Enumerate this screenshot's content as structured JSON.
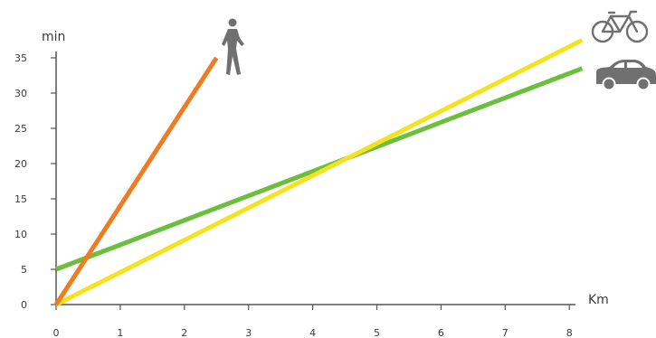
{
  "chart_data": {
    "type": "line",
    "xlabel": "Km",
    "ylabel": "min",
    "xlim": [
      0,
      8
    ],
    "ylim": [
      0,
      35
    ],
    "x_ticks": [
      0,
      1,
      2,
      3,
      4,
      5,
      6,
      7,
      8
    ],
    "y_ticks": [
      0,
      5,
      10,
      15,
      20,
      25,
      30,
      35
    ],
    "grid": false,
    "series": [
      {
        "icon": "walking-person-icon",
        "color": "#f07c22",
        "x": [
          0,
          2.5
        ],
        "y": [
          0,
          35
        ]
      },
      {
        "icon": "bicycle-icon",
        "color": "#f4e21e",
        "x": [
          0,
          8.2
        ],
        "y": [
          0,
          37.5
        ]
      },
      {
        "icon": "car-icon",
        "color": "#6cbf3c",
        "x": [
          0,
          8.2
        ],
        "y": [
          5,
          33.5
        ]
      }
    ]
  }
}
